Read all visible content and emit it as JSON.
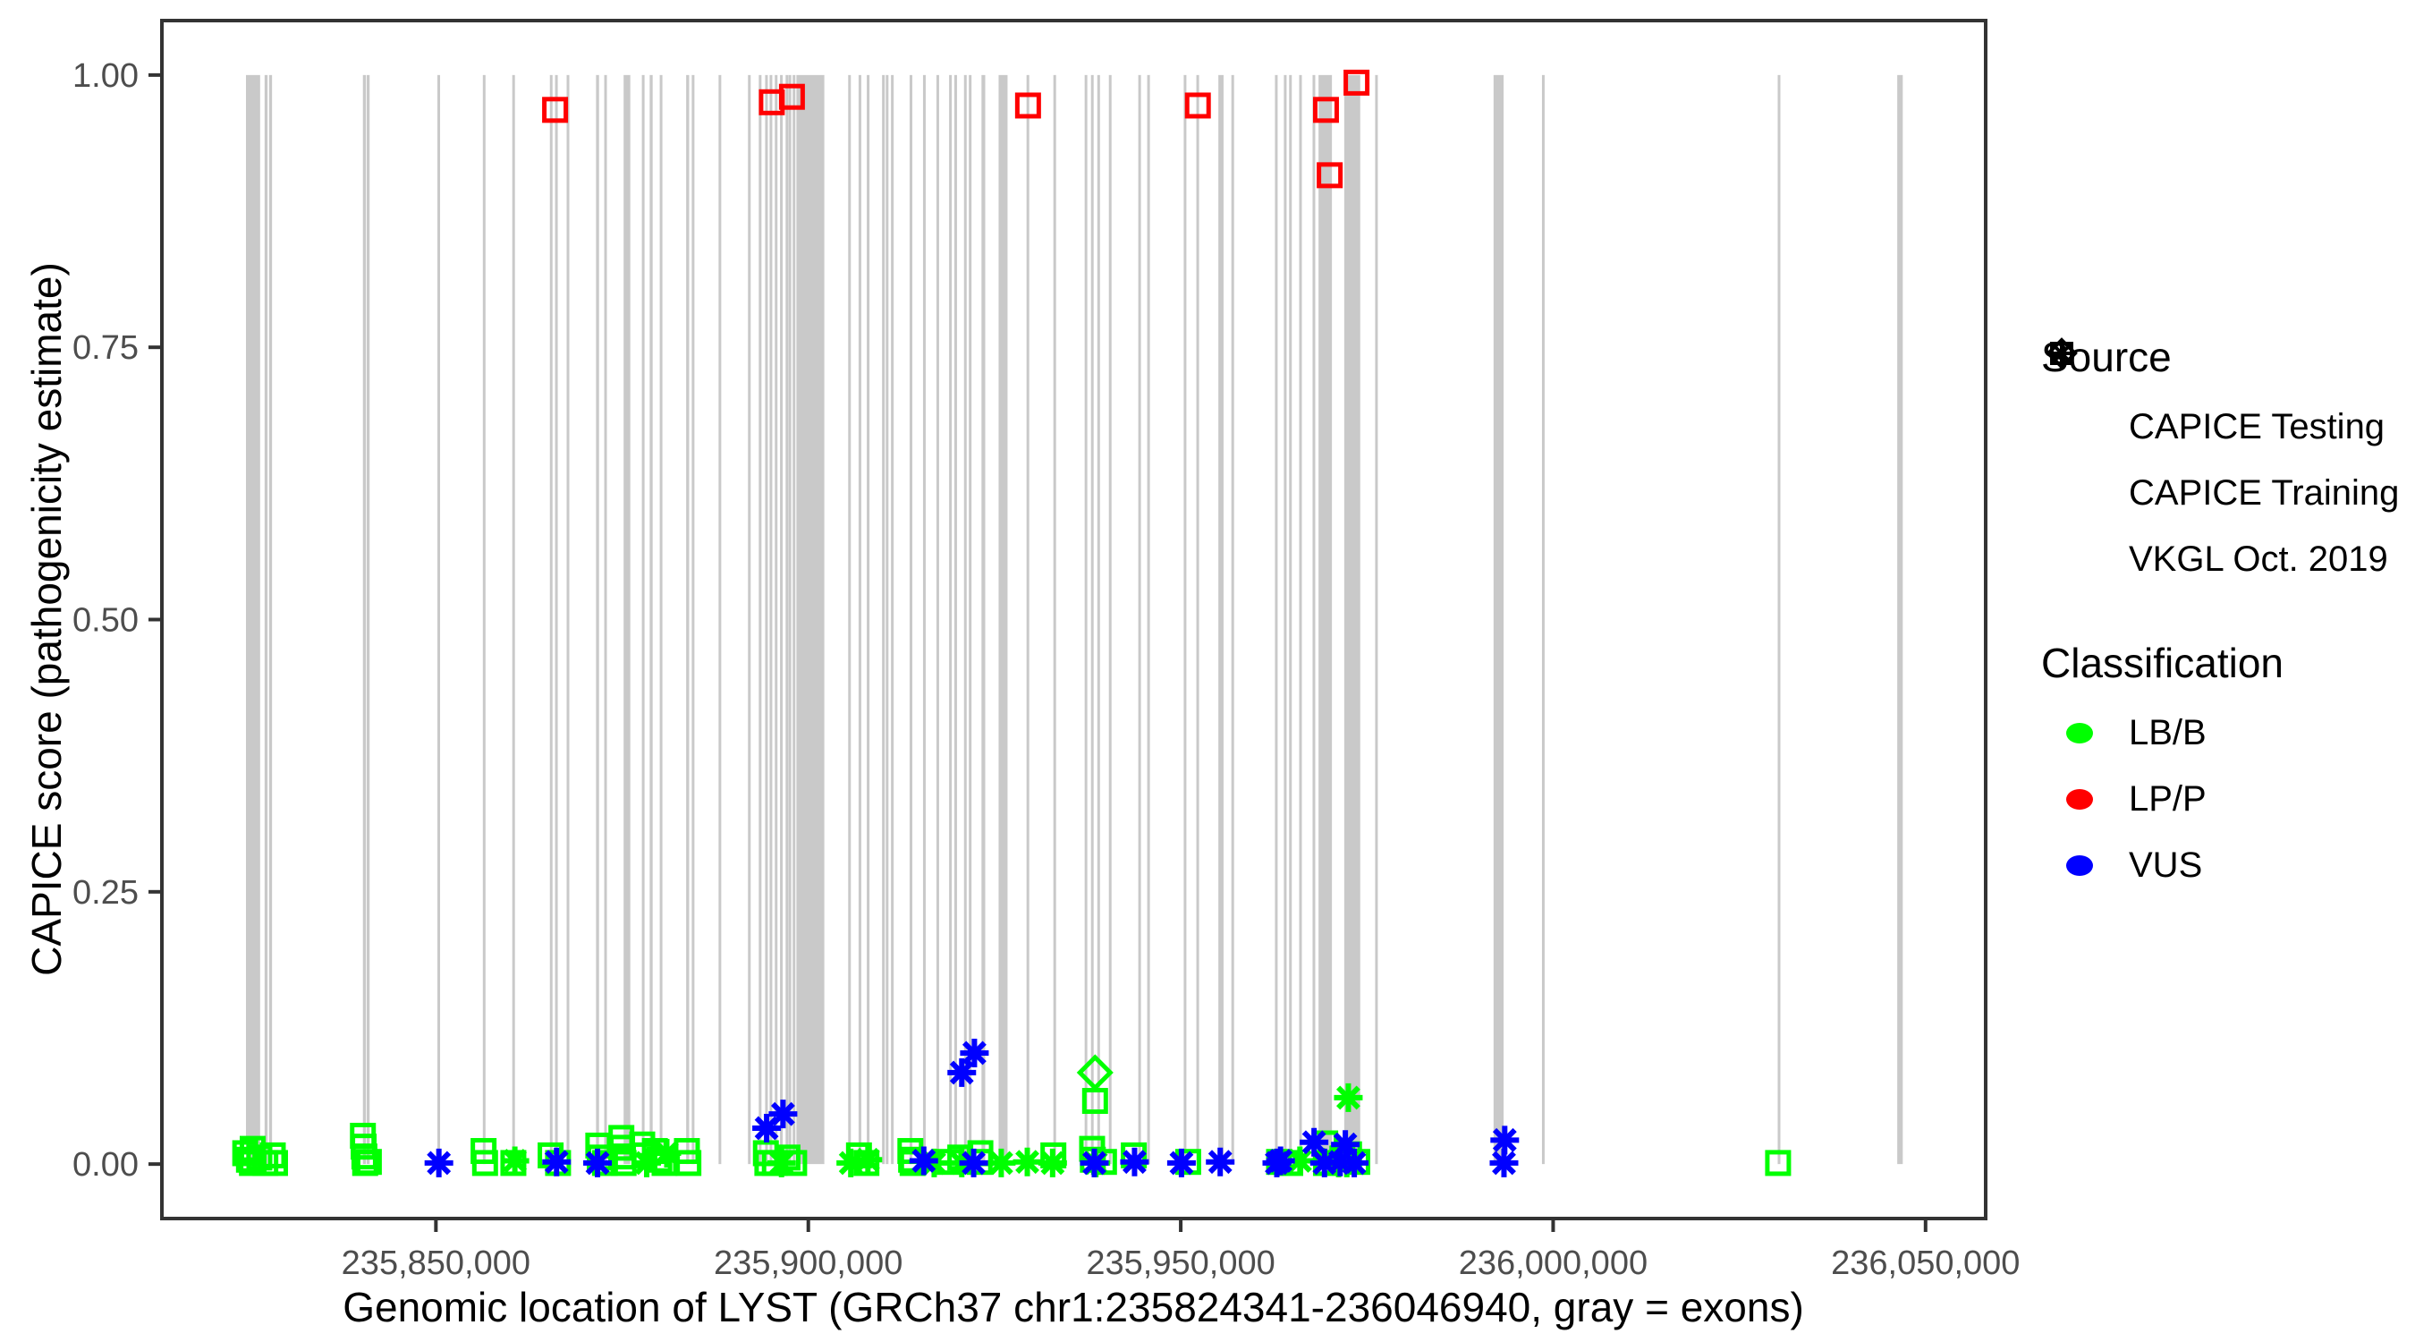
{
  "figure": {
    "x_axis_title": "Genomic location of LYST (GRCh37 chr1:235824341-236046940, gray = exons)",
    "y_axis_title": "CAPICE score (pathogenicity estimate)"
  },
  "legend": {
    "source": {
      "title": "Source",
      "items": [
        {
          "label": "CAPICE Testing",
          "shape": "diamond"
        },
        {
          "label": "CAPICE Training",
          "shape": "square"
        },
        {
          "label": "VKGL Oct. 2019",
          "shape": "asterisk"
        }
      ]
    },
    "classification": {
      "title": "Classification",
      "items": [
        {
          "label": "LB/B",
          "color": "#00FF00"
        },
        {
          "label": "LP/P",
          "color": "#FF0000"
        },
        {
          "label": "VUS",
          "color": "#0000FF"
        }
      ]
    }
  },
  "chart_data": {
    "type": "scatter",
    "title": "",
    "xlabel": "Genomic location of LYST (GRCh37 chr1:235824341-236046940, gray = exons)",
    "ylabel": "CAPICE score (pathogenicity estimate)",
    "xlim": [
      235813211,
      236058070
    ],
    "ylim": [
      -0.05,
      1.05
    ],
    "gene_region": [
      235824341,
      236046940
    ],
    "x_ticks": {
      "values": [
        235850000,
        235900000,
        235950000,
        236000000,
        236050000
      ],
      "labels": [
        "235,850,000",
        "235,900,000",
        "235,950,000",
        "236,000,000",
        "236,050,000"
      ]
    },
    "y_ticks": {
      "values": [
        0,
        0.25,
        0.5,
        0.75,
        1
      ],
      "labels": [
        "0.00",
        "0.25",
        "0.50",
        "0.75",
        "1.00"
      ]
    },
    "colors": {
      "LB/B": "#00FF00",
      "LP/P": "#FF0000",
      "VUS": "#0000FF",
      "exon": "#C9C9C9",
      "axis": "#333333",
      "tick_label": "#4D4D4D"
    },
    "exons": [
      [
        235824500,
        235826400
      ],
      [
        235827000,
        235827400
      ],
      [
        235827600,
        235828000
      ],
      [
        235840200,
        235840600
      ],
      [
        235840700,
        235841100
      ],
      [
        235850200,
        235850550
      ],
      [
        235856300,
        235856650
      ],
      [
        235860250,
        235860600
      ],
      [
        235865300,
        235865650
      ],
      [
        235866000,
        235866350
      ],
      [
        235867550,
        235867900
      ],
      [
        235871500,
        235871900
      ],
      [
        235872600,
        235872950
      ],
      [
        235875200,
        235876100
      ],
      [
        235877650,
        235878000
      ],
      [
        235878700,
        235879100
      ],
      [
        235880050,
        235880400
      ],
      [
        235883600,
        235884000
      ],
      [
        235884350,
        235884700
      ],
      [
        235887950,
        235888300
      ],
      [
        235891900,
        235892250
      ],
      [
        235893350,
        235893700
      ],
      [
        235894200,
        235894550
      ],
      [
        235894800,
        235895150
      ],
      [
        235895500,
        235895850
      ],
      [
        235896200,
        235896550
      ],
      [
        235896950,
        235897300
      ],
      [
        235897350,
        235897700
      ],
      [
        235897900,
        235898250
      ],
      [
        235898400,
        235902150
      ],
      [
        235905350,
        235905700
      ],
      [
        235906750,
        235907100
      ],
      [
        235907850,
        235908200
      ],
      [
        235909900,
        235910250
      ],
      [
        235910400,
        235910700
      ],
      [
        235911100,
        235911450
      ],
      [
        235913600,
        235913950
      ],
      [
        235915400,
        235915750
      ],
      [
        235917200,
        235917550
      ],
      [
        235918900,
        235919250
      ],
      [
        235919600,
        235919950
      ],
      [
        235920900,
        235921250
      ],
      [
        235921550,
        235921900
      ],
      [
        235923250,
        235923750
      ],
      [
        235925550,
        235926750
      ],
      [
        235929300,
        235929650
      ],
      [
        235932900,
        235933250
      ],
      [
        235937100,
        235937450
      ],
      [
        235937950,
        235938300
      ],
      [
        235938800,
        235939150
      ],
      [
        235940350,
        235940700
      ],
      [
        235944300,
        235944650
      ],
      [
        235945500,
        235945850
      ],
      [
        235950400,
        235950750
      ],
      [
        235952100,
        235952450
      ],
      [
        235955050,
        235955750
      ],
      [
        235956800,
        235957150
      ],
      [
        235962650,
        235963000
      ],
      [
        235963850,
        235964200
      ],
      [
        235964550,
        235964900
      ],
      [
        235965900,
        235966250
      ],
      [
        235967700,
        235968050
      ],
      [
        235968500,
        235970300
      ],
      [
        235971950,
        235974100
      ],
      [
        235976100,
        235976450
      ],
      [
        235992000,
        235993350
      ],
      [
        235998500,
        235998850
      ],
      [
        236030150,
        236030500
      ],
      [
        236046200,
        236046940
      ]
    ],
    "series": [
      {
        "source": "CAPICE Training",
        "classification": "LB/B",
        "shape": "square",
        "color": "#00FF00",
        "points": [
          [
            235824400,
            0.01
          ],
          [
            235824900,
            0.004
          ],
          [
            235825400,
            0.014
          ],
          [
            235825300,
            0.001
          ],
          [
            235826300,
            0.006
          ],
          [
            235827100,
            0.001
          ],
          [
            235828100,
            0.008
          ],
          [
            235828400,
            0.001
          ],
          [
            235840200,
            0.026
          ],
          [
            235840300,
            0.016
          ],
          [
            235840400,
            0.007
          ],
          [
            235840500,
            0.001
          ],
          [
            235841000,
            0.002
          ],
          [
            235856400,
            0.012
          ],
          [
            235856600,
            0.001
          ],
          [
            235860400,
            0.001
          ],
          [
            235865400,
            0.008
          ],
          [
            235866400,
            0.001
          ],
          [
            235871800,
            0.017
          ],
          [
            235872000,
            0.006
          ],
          [
            235872700,
            0.001
          ],
          [
            235874900,
            0.024
          ],
          [
            235875000,
            0.015
          ],
          [
            235875100,
            0.007
          ],
          [
            235875200,
            0.001
          ],
          [
            235877700,
            0.018
          ],
          [
            235878000,
            0.008
          ],
          [
            235879400,
            0.012
          ],
          [
            235880000,
            0.004
          ],
          [
            235880700,
            0.001
          ],
          [
            235883700,
            0.012
          ],
          [
            235883900,
            0.001
          ],
          [
            235894300,
            0.01
          ],
          [
            235894500,
            0.001
          ],
          [
            235895500,
            0.001
          ],
          [
            235897200,
            0.006
          ],
          [
            235898100,
            0.001
          ],
          [
            235906800,
            0.008
          ],
          [
            235907800,
            0.001
          ],
          [
            235913700,
            0.012
          ],
          [
            235913800,
            0.004
          ],
          [
            235914000,
            0.001
          ],
          [
            235919000,
            0.002
          ],
          [
            235920400,
            0.006
          ],
          [
            235923000,
            0.002
          ],
          [
            235923100,
            0.01
          ],
          [
            235932900,
            0.008
          ],
          [
            235938100,
            0.014
          ],
          [
            235938200,
            0.004
          ],
          [
            235938500,
            0.058
          ],
          [
            235939700,
            0.002
          ],
          [
            235943700,
            0.008
          ],
          [
            235951000,
            0.002
          ],
          [
            235963200,
            0.002
          ],
          [
            235964700,
            0.001
          ],
          [
            235969400,
            0.019
          ],
          [
            235969500,
            0.001
          ],
          [
            235971700,
            0.005
          ],
          [
            235972600,
            0.009
          ],
          [
            235973700,
            0.002
          ],
          [
            236030200,
            0.001
          ]
        ]
      },
      {
        "source": "VKGL Oct. 2019",
        "classification": "LB/B",
        "shape": "asterisk",
        "color": "#00FF00",
        "points": [
          [
            235860600,
            0.003
          ],
          [
            235878300,
            0.001
          ],
          [
            235881000,
            0.01
          ],
          [
            235896400,
            0.001
          ],
          [
            235905700,
            0.001
          ],
          [
            235908000,
            0.004
          ],
          [
            235916900,
            0.001
          ],
          [
            235920600,
            0.001
          ],
          [
            235925900,
            0.001
          ],
          [
            235929400,
            0.002
          ],
          [
            235932800,
            0.001
          ],
          [
            235938600,
            0.001
          ],
          [
            235966000,
            0.003
          ],
          [
            235970400,
            0.004
          ],
          [
            235971200,
            0.001
          ],
          [
            235972300,
            0.001
          ],
          [
            235972500,
            0.061
          ]
        ]
      },
      {
        "source": "CAPICE Testing",
        "classification": "LB/B",
        "shape": "diamond",
        "color": "#00FF00",
        "points": [
          [
            235938500,
            0.084
          ]
        ]
      },
      {
        "source": "VKGL Oct. 2019",
        "classification": "VUS",
        "shape": "asterisk",
        "color": "#0000FF",
        "points": [
          [
            235920600,
            0.084
          ],
          [
            235922300,
            0.102
          ],
          [
            235894400,
            0.033
          ],
          [
            235896600,
            0.046
          ],
          [
            235972100,
            0.018
          ],
          [
            235993500,
            0.022
          ],
          [
            235993400,
            0.001
          ],
          [
            235850400,
            0.001
          ],
          [
            235866200,
            0.002
          ],
          [
            235871700,
            0.001
          ],
          [
            235915500,
            0.003
          ],
          [
            235922200,
            0.001
          ],
          [
            235938400,
            0.001
          ],
          [
            235943800,
            0.002
          ],
          [
            235950100,
            0.001
          ],
          [
            235955300,
            0.002
          ],
          [
            235962900,
            0.001
          ],
          [
            235963400,
            0.003
          ],
          [
            235967900,
            0.02
          ],
          [
            235969300,
            0.001
          ],
          [
            235971400,
            0.002
          ],
          [
            235973300,
            0.001
          ]
        ]
      },
      {
        "source": "CAPICE Training",
        "classification": "LP/P",
        "shape": "square",
        "color": "#FF0000",
        "points": [
          [
            235866000,
            0.968
          ],
          [
            235895100,
            0.975
          ],
          [
            235897800,
            0.98
          ],
          [
            235929500,
            0.972
          ],
          [
            235952300,
            0.972
          ],
          [
            235969500,
            0.968
          ],
          [
            235970000,
            0.908
          ],
          [
            235973600,
            0.993
          ]
        ]
      }
    ]
  }
}
